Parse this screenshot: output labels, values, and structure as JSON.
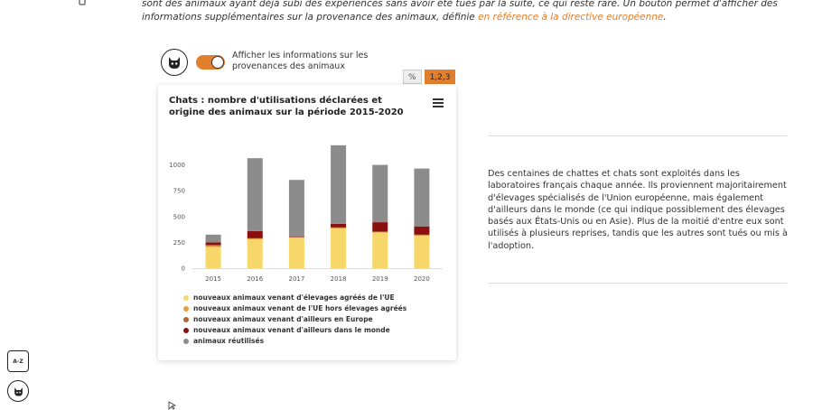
{
  "intro": {
    "text": "sont des animaux ayant déjà subi des expériences sans avoir été tués par la suite, ce qui reste rare. Un bouton permet d'afficher des informations supplémentaires sur la provenance des animaux, définie ",
    "link": "en référence à la directive européenne",
    "end": "."
  },
  "toggle": {
    "label": "Afficher les informations sur les provenances des animaux",
    "state": "on"
  },
  "format_buttons": {
    "percent": "%",
    "absolute": "1,2,3"
  },
  "colors": {
    "eu_agreed": "#f7d76a",
    "eu_non_agreed": "#e9a03a",
    "europe_other": "#b5652d",
    "world_other": "#8a1010",
    "reused": "#8c8c8c",
    "accent": "#e27f2e"
  },
  "chart_data": {
    "type": "bar",
    "stacked": true,
    "title": "Chats : nombre d'utilisations déclarées et origine des animaux sur la période 2015-2020",
    "categories": [
      "2015",
      "2016",
      "2017",
      "2018",
      "2019",
      "2020"
    ],
    "ylim": [
      0,
      1250
    ],
    "yticks": [
      0,
      250,
      500,
      750,
      1000
    ],
    "ytick_labels": [
      "0",
      "250",
      "500",
      "750",
      "1000"
    ],
    "grid": false,
    "legend_position": "bottom",
    "series": [
      {
        "name": "nouveaux animaux venant d'élevages agréés de l'UE",
        "color_key": "eu_agreed",
        "values": [
          205,
          280,
          295,
          385,
          345,
          315
        ]
      },
      {
        "name": "nouveaux animaux venant de l'UE hors élevages agréés",
        "color_key": "eu_non_agreed",
        "values": [
          10,
          8,
          3,
          5,
          5,
          5
        ]
      },
      {
        "name": "nouveaux animaux venant d'ailleurs en Europe",
        "color_key": "europe_other",
        "values": [
          10,
          2,
          2,
          5,
          5,
          5
        ]
      },
      {
        "name": "nouveaux animaux venant d'ailleurs dans le monde",
        "color_key": "world_other",
        "values": [
          25,
          70,
          5,
          35,
          90,
          80
        ]
      },
      {
        "name": "animaux réutilisés",
        "color_key": "reused",
        "values": [
          75,
          705,
          550,
          760,
          555,
          560
        ]
      }
    ]
  },
  "description": "Des centaines de chattes et chats sont exploités dans les laboratoires français chaque année. Ils proviennent majoritairement d'élevages spécialisés de l'Union européenne, mais également d'ailleurs dans le monde (ce qui indique possiblement des élevages basés aux États-Unis ou en Asie). Plus de la moitié d'entre eux sont utilisés à plusieurs reprises, tandis que les autres sont tués ou mis à l'adoption.",
  "side_buttons": {
    "glossary": "A-Z"
  },
  "icons": {
    "animal": "cat-head-icon",
    "menu": "hamburger-menu-icon",
    "glossary": "glossary-icon",
    "top": "small-icon"
  }
}
